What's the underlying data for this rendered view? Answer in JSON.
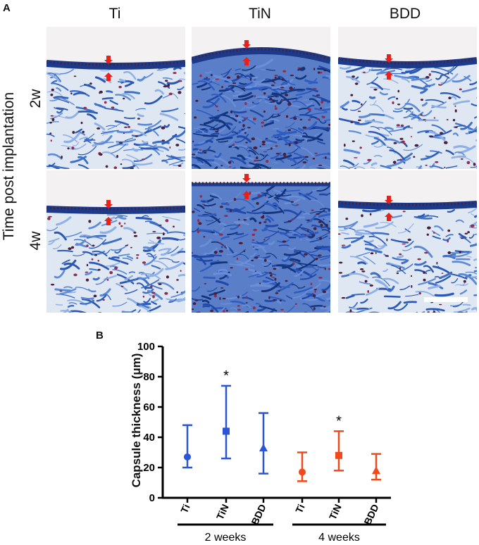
{
  "panel_a": {
    "label": "A",
    "columns": [
      "Ti",
      "TiN",
      "BDD"
    ],
    "rows": [
      "2w",
      "4w"
    ],
    "side_label": "Time post implantation"
  },
  "panel_b": {
    "label": "B"
  },
  "colors": {
    "series_2w": "#2b55d6",
    "series_4w": "#f04a1c",
    "arrow": "#e8211b",
    "stain_blue": "#3d6fc6"
  },
  "chart_data": {
    "type": "scatter",
    "ylabel": "Capsule thickness (μm)",
    "ylim": [
      0,
      100
    ],
    "yticks": [
      0,
      20,
      40,
      60,
      80,
      100
    ],
    "categories": [
      "Ti",
      "TiN",
      "BDD",
      "Ti",
      "TiN",
      "BDD"
    ],
    "groups": [
      {
        "label": "2 weeks",
        "categories": [
          "Ti",
          "TiN",
          "BDD"
        ]
      },
      {
        "label": "4 weeks",
        "categories": [
          "Ti",
          "TiN",
          "BDD"
        ]
      }
    ],
    "series": [
      {
        "group": "2 weeks",
        "color": "#2b55d6",
        "points": [
          {
            "category": "Ti",
            "marker": "circle",
            "value": 27,
            "low": 20,
            "high": 48,
            "annotation": ""
          },
          {
            "category": "TiN",
            "marker": "square",
            "value": 44,
            "low": 26,
            "high": 74,
            "annotation": "*"
          },
          {
            "category": "BDD",
            "marker": "triangle",
            "value": 33,
            "low": 16,
            "high": 56,
            "annotation": ""
          }
        ]
      },
      {
        "group": "4 weeks",
        "color": "#f04a1c",
        "points": [
          {
            "category": "Ti",
            "marker": "circle",
            "value": 17,
            "low": 11,
            "high": 30,
            "annotation": ""
          },
          {
            "category": "TiN",
            "marker": "square",
            "value": 28,
            "low": 18,
            "high": 44,
            "annotation": "*"
          },
          {
            "category": "BDD",
            "marker": "triangle",
            "value": 18,
            "low": 12,
            "high": 29,
            "annotation": ""
          }
        ]
      }
    ]
  }
}
